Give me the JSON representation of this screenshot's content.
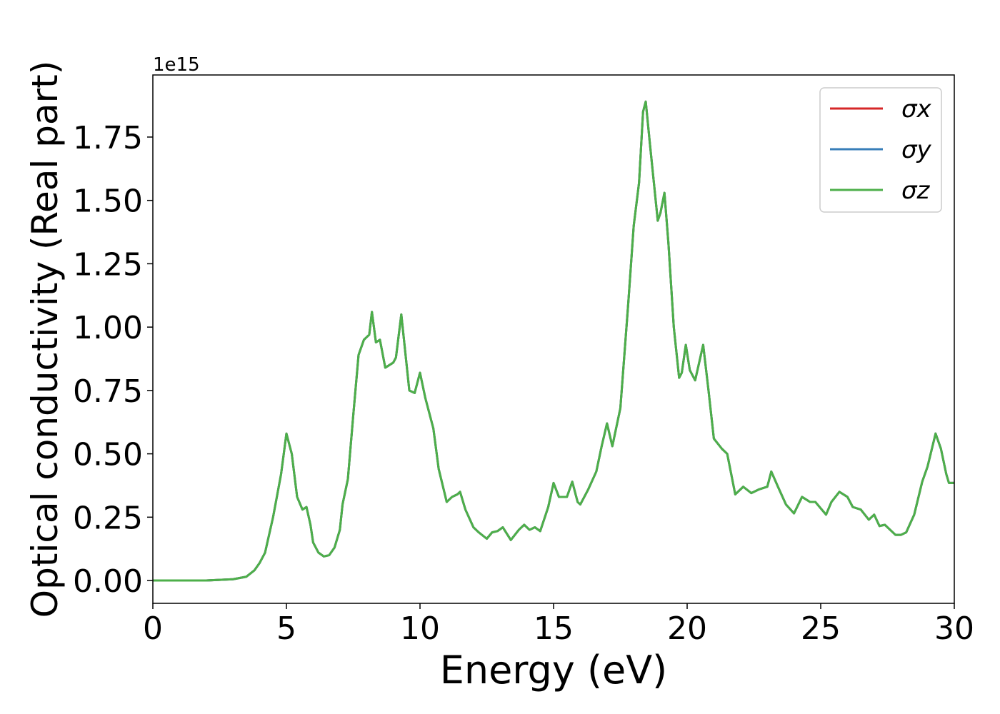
{
  "chart_data": {
    "type": "line",
    "x_label": "Energy (eV)",
    "y_label": "Optical conductivity (Real part)",
    "y_offset_label": "1e15",
    "x": [
      0,
      1,
      2,
      3,
      3.5,
      3.8,
      4.0,
      4.2,
      4.5,
      4.8,
      5.0,
      5.2,
      5.4,
      5.6,
      5.75,
      5.9,
      6.0,
      6.2,
      6.4,
      6.6,
      6.8,
      7.0,
      7.1,
      7.3,
      7.5,
      7.7,
      7.9,
      8.0,
      8.1,
      8.2,
      8.35,
      8.5,
      8.7,
      9.0,
      9.1,
      9.3,
      9.45,
      9.6,
      9.8,
      10.0,
      10.2,
      10.5,
      10.7,
      11.0,
      11.2,
      11.4,
      11.5,
      11.7,
      12.0,
      12.2,
      12.5,
      12.7,
      12.9,
      13.1,
      13.4,
      13.7,
      13.9,
      14.1,
      14.3,
      14.5,
      14.8,
      15.0,
      15.2,
      15.5,
      15.7,
      15.9,
      16.0,
      16.3,
      16.6,
      16.8,
      17.0,
      17.2,
      17.5,
      17.8,
      18.0,
      18.2,
      18.35,
      18.45,
      18.6,
      18.9,
      19.0,
      19.15,
      19.3,
      19.5,
      19.7,
      19.8,
      19.95,
      20.1,
      20.3,
      20.6,
      20.8,
      21.0,
      21.3,
      21.5,
      21.8,
      22.1,
      22.4,
      22.7,
      23.0,
      23.15,
      23.4,
      23.7,
      24.0,
      24.3,
      24.6,
      24.8,
      25.2,
      25.4,
      25.7,
      26.0,
      26.2,
      26.5,
      26.8,
      27.0,
      27.2,
      27.4,
      27.6,
      27.8,
      28.0,
      28.2,
      28.5,
      28.8,
      29.0,
      29.3,
      29.5,
      29.7,
      29.8,
      30.0
    ],
    "series": [
      {
        "name": "σx",
        "color": "#d62728",
        "values": [
          0,
          0,
          0,
          0.005,
          0.015,
          0.04,
          0.07,
          0.11,
          0.25,
          0.42,
          0.58,
          0.5,
          0.33,
          0.28,
          0.29,
          0.22,
          0.15,
          0.11,
          0.095,
          0.1,
          0.13,
          0.2,
          0.3,
          0.4,
          0.65,
          0.89,
          0.95,
          0.96,
          0.97,
          1.06,
          0.94,
          0.95,
          0.84,
          0.86,
          0.88,
          1.05,
          0.9,
          0.75,
          0.74,
          0.82,
          0.72,
          0.6,
          0.44,
          0.31,
          0.33,
          0.34,
          0.35,
          0.28,
          0.21,
          0.19,
          0.165,
          0.19,
          0.195,
          0.21,
          0.16,
          0.2,
          0.22,
          0.2,
          0.21,
          0.195,
          0.29,
          0.385,
          0.33,
          0.33,
          0.39,
          0.31,
          0.3,
          0.36,
          0.43,
          0.53,
          0.62,
          0.53,
          0.68,
          1.1,
          1.4,
          1.57,
          1.85,
          1.89,
          1.73,
          1.42,
          1.45,
          1.53,
          1.33,
          1.0,
          0.8,
          0.82,
          0.93,
          0.83,
          0.79,
          0.93,
          0.75,
          0.56,
          0.52,
          0.5,
          0.34,
          0.37,
          0.345,
          0.36,
          0.37,
          0.43,
          0.37,
          0.3,
          0.265,
          0.33,
          0.31,
          0.31,
          0.26,
          0.31,
          0.35,
          0.33,
          0.29,
          0.28,
          0.24,
          0.26,
          0.215,
          0.22,
          0.2,
          0.18,
          0.18,
          0.19,
          0.26,
          0.39,
          0.45,
          0.58,
          0.52,
          0.42,
          0.385,
          0.385
        ]
      },
      {
        "name": "σy",
        "color": "#377eb8",
        "values": [
          0,
          0,
          0,
          0.005,
          0.015,
          0.04,
          0.07,
          0.11,
          0.25,
          0.42,
          0.58,
          0.5,
          0.33,
          0.28,
          0.29,
          0.22,
          0.15,
          0.11,
          0.095,
          0.1,
          0.13,
          0.2,
          0.3,
          0.4,
          0.65,
          0.89,
          0.95,
          0.96,
          0.97,
          1.06,
          0.94,
          0.95,
          0.84,
          0.86,
          0.88,
          1.05,
          0.9,
          0.75,
          0.74,
          0.82,
          0.72,
          0.6,
          0.44,
          0.31,
          0.33,
          0.34,
          0.35,
          0.28,
          0.21,
          0.19,
          0.165,
          0.19,
          0.195,
          0.21,
          0.16,
          0.2,
          0.22,
          0.2,
          0.21,
          0.195,
          0.29,
          0.385,
          0.33,
          0.33,
          0.39,
          0.31,
          0.3,
          0.36,
          0.43,
          0.53,
          0.62,
          0.53,
          0.68,
          1.1,
          1.4,
          1.57,
          1.85,
          1.89,
          1.73,
          1.42,
          1.45,
          1.53,
          1.33,
          1.0,
          0.8,
          0.82,
          0.93,
          0.83,
          0.79,
          0.93,
          0.75,
          0.56,
          0.52,
          0.5,
          0.34,
          0.37,
          0.345,
          0.36,
          0.37,
          0.43,
          0.37,
          0.3,
          0.265,
          0.33,
          0.31,
          0.31,
          0.26,
          0.31,
          0.35,
          0.33,
          0.29,
          0.28,
          0.24,
          0.26,
          0.215,
          0.22,
          0.2,
          0.18,
          0.18,
          0.19,
          0.26,
          0.39,
          0.45,
          0.58,
          0.52,
          0.42,
          0.385,
          0.385
        ]
      },
      {
        "name": "σz",
        "color": "#4daf4a",
        "values": [
          0,
          0,
          0,
          0.005,
          0.015,
          0.04,
          0.07,
          0.11,
          0.25,
          0.42,
          0.58,
          0.5,
          0.33,
          0.28,
          0.29,
          0.22,
          0.15,
          0.11,
          0.095,
          0.1,
          0.13,
          0.2,
          0.3,
          0.4,
          0.65,
          0.89,
          0.95,
          0.96,
          0.97,
          1.06,
          0.94,
          0.95,
          0.84,
          0.86,
          0.88,
          1.05,
          0.9,
          0.75,
          0.74,
          0.82,
          0.72,
          0.6,
          0.44,
          0.31,
          0.33,
          0.34,
          0.35,
          0.28,
          0.21,
          0.19,
          0.165,
          0.19,
          0.195,
          0.21,
          0.16,
          0.2,
          0.22,
          0.2,
          0.21,
          0.195,
          0.29,
          0.385,
          0.33,
          0.33,
          0.39,
          0.31,
          0.3,
          0.36,
          0.43,
          0.53,
          0.62,
          0.53,
          0.68,
          1.1,
          1.4,
          1.57,
          1.85,
          1.89,
          1.73,
          1.42,
          1.45,
          1.53,
          1.33,
          1.0,
          0.8,
          0.82,
          0.93,
          0.83,
          0.79,
          0.93,
          0.75,
          0.56,
          0.52,
          0.5,
          0.34,
          0.37,
          0.345,
          0.36,
          0.37,
          0.43,
          0.37,
          0.3,
          0.265,
          0.33,
          0.31,
          0.31,
          0.26,
          0.31,
          0.35,
          0.33,
          0.29,
          0.28,
          0.24,
          0.26,
          0.215,
          0.22,
          0.2,
          0.18,
          0.18,
          0.19,
          0.26,
          0.39,
          0.45,
          0.58,
          0.52,
          0.42,
          0.385,
          0.385
        ]
      }
    ],
    "xlim": [
      0,
      30
    ],
    "xticks": [
      0,
      5,
      10,
      15,
      20,
      25,
      30
    ],
    "ylim": [
      -0.09,
      1.995
    ],
    "yticks": [
      {
        "value": 0,
        "label": "0.00"
      },
      0.25,
      {
        "value": 0.5,
        "label": "0.50"
      },
      0.75,
      {
        "value": 1,
        "label": "1.00"
      },
      1.25,
      {
        "value": 1.5,
        "label": "1.50"
      },
      1.75
    ],
    "grid": false,
    "legend": "upper right"
  }
}
